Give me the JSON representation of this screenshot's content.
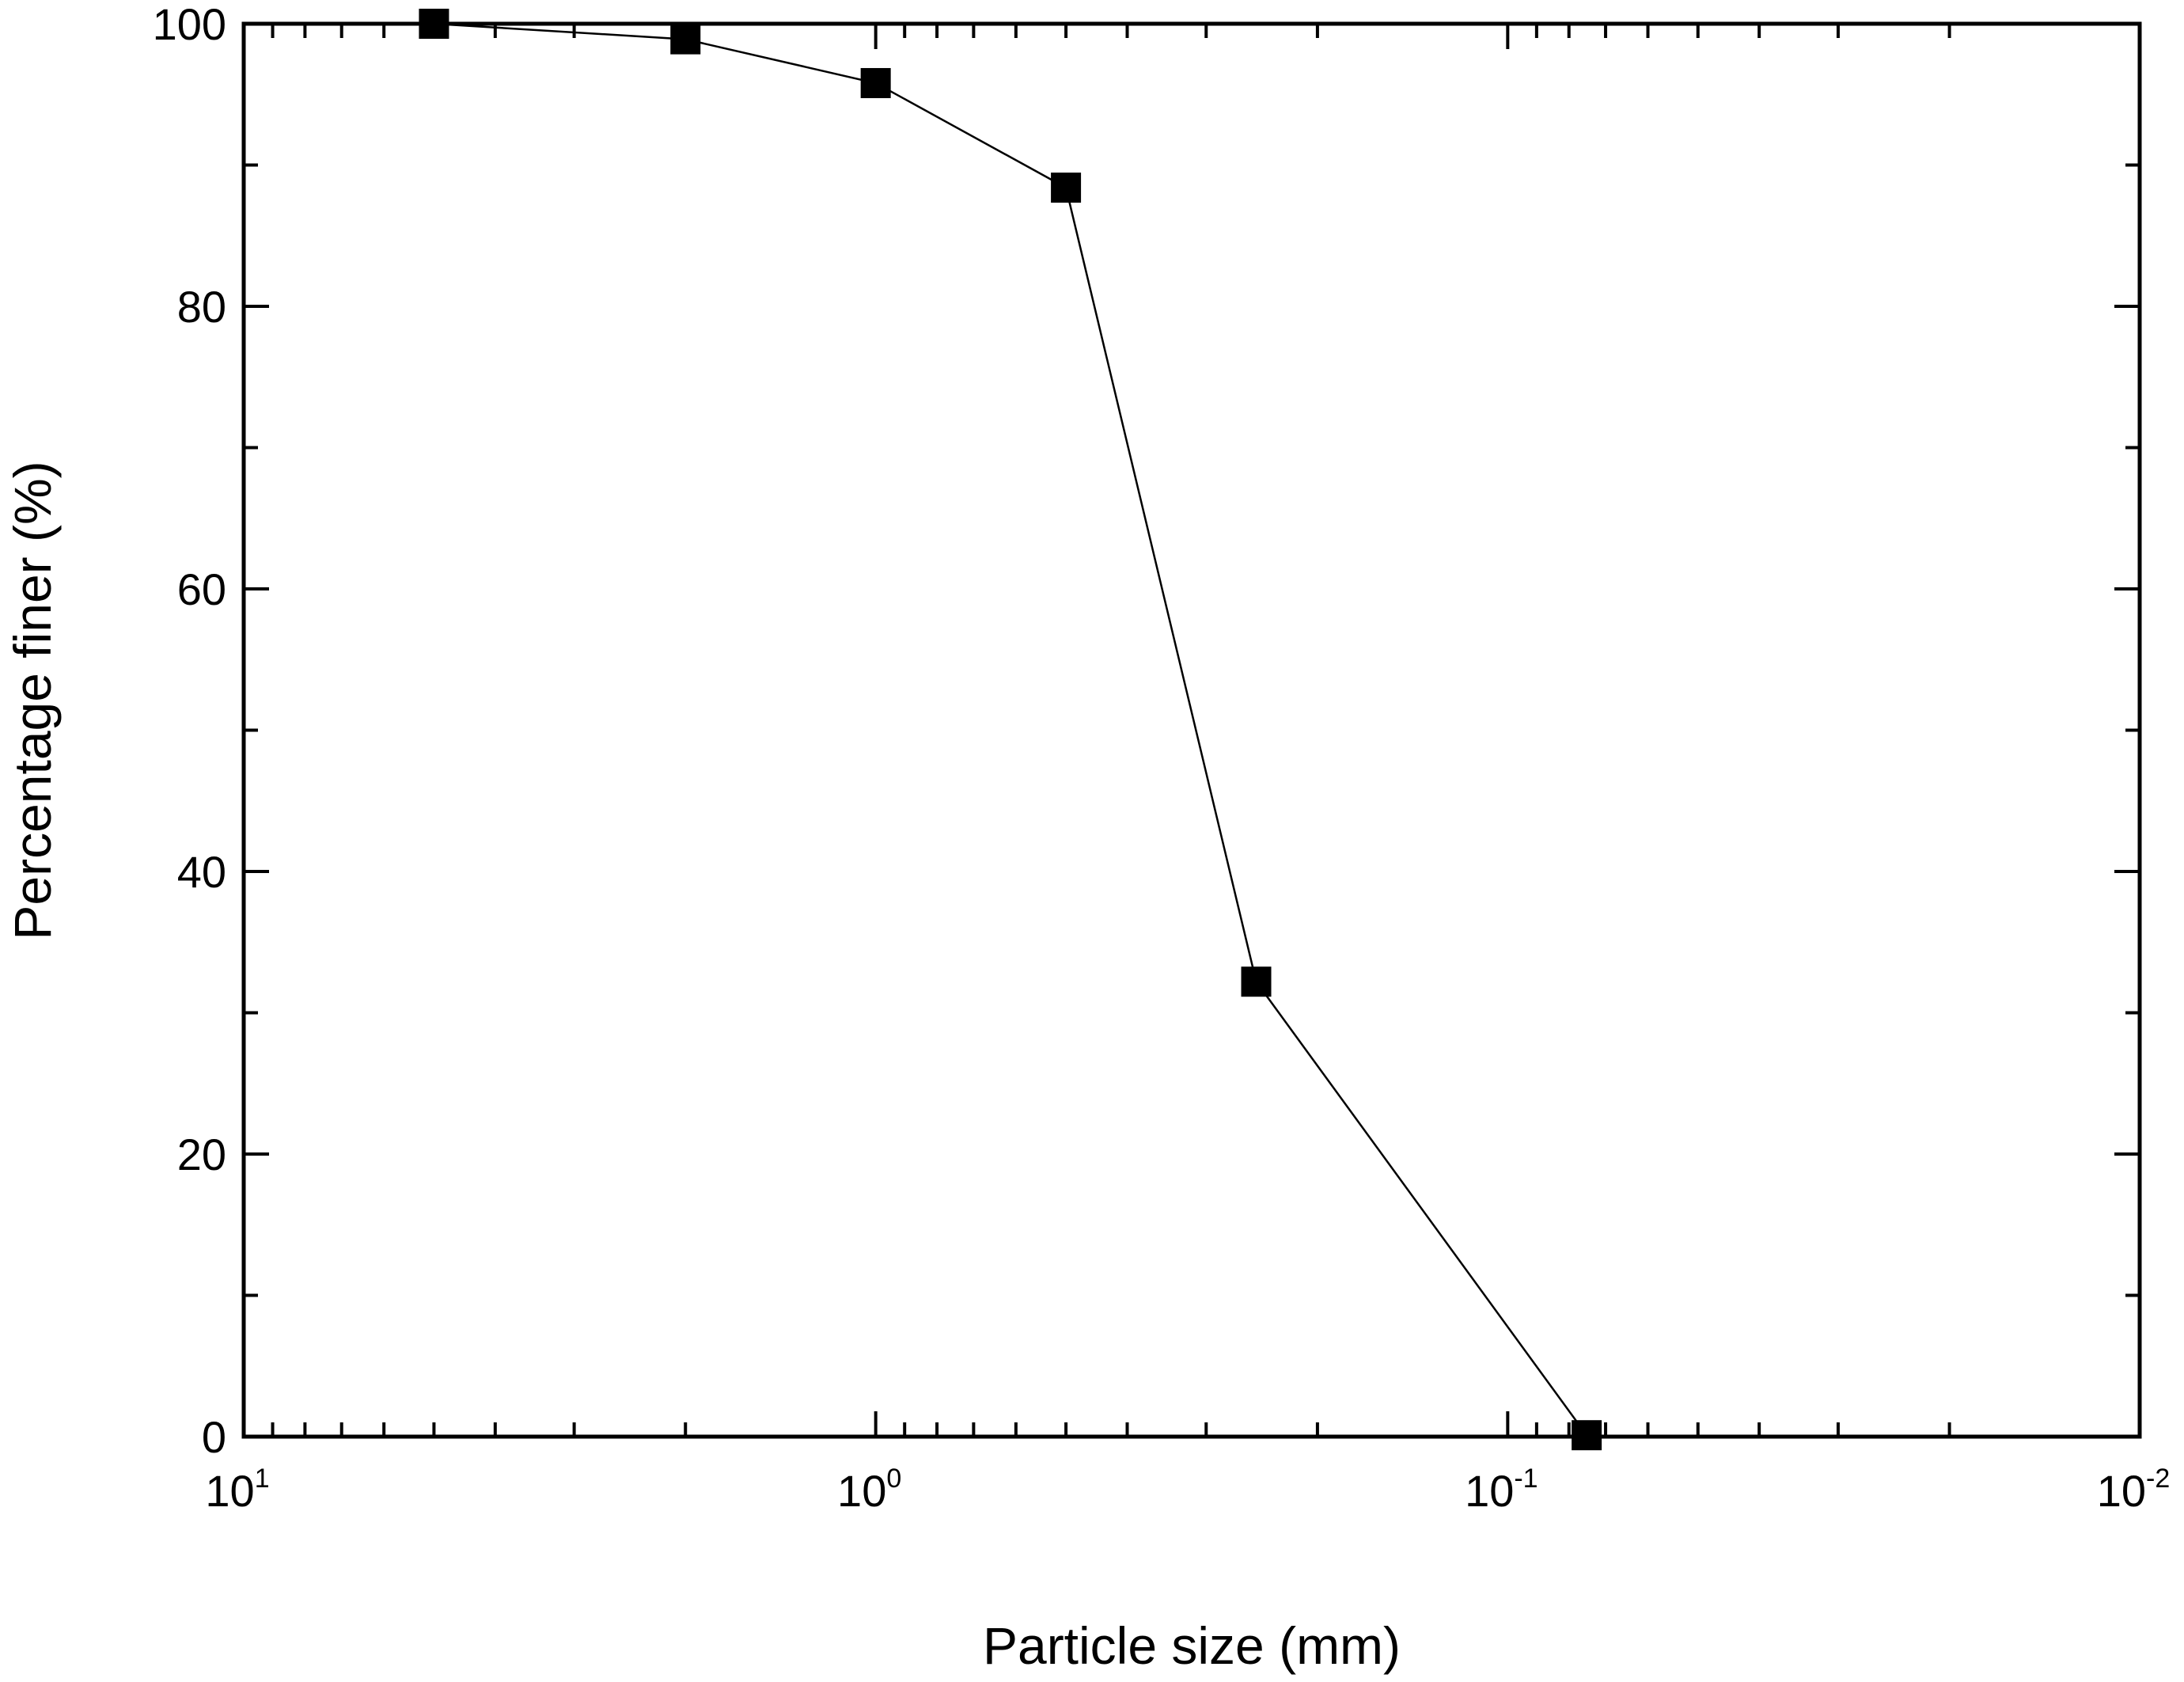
{
  "chart_data": {
    "type": "line",
    "title": "",
    "xlabel": "Particle size (mm)",
    "ylabel": "Percentage finer (%)",
    "x_scale": "log",
    "x_reversed": true,
    "xlim": [
      10,
      0.01
    ],
    "ylim": [
      0,
      100
    ],
    "x_ticks": [
      {
        "value": 10,
        "base": "10",
        "exp": "1"
      },
      {
        "value": 1,
        "base": "10",
        "exp": "0"
      },
      {
        "value": 0.1,
        "base": "10",
        "exp": "-1"
      },
      {
        "value": 0.01,
        "base": "10",
        "exp": "-2"
      }
    ],
    "y_ticks": [
      "0",
      "20",
      "40",
      "60",
      "80",
      "100"
    ],
    "grid": false,
    "legend": "none",
    "marker": "square",
    "color": "#000000",
    "series": [
      {
        "x": [
          5,
          2,
          1,
          0.5,
          0.25,
          0.075
        ],
        "y": [
          100,
          98.9,
          95.8,
          88.4,
          32.2,
          0.1
        ]
      }
    ]
  }
}
